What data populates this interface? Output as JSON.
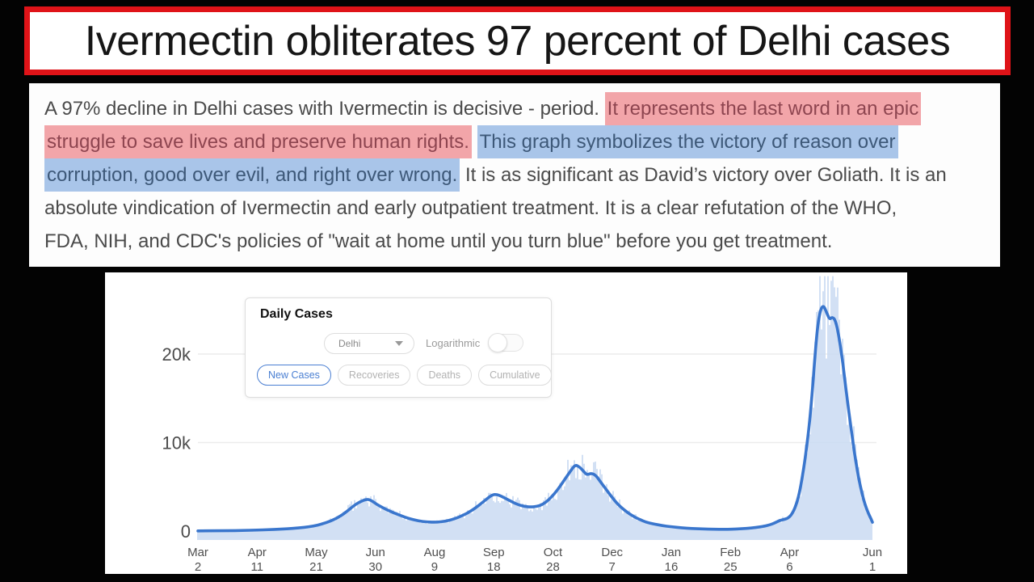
{
  "headline": {
    "text": "Ivermectin obliterates 97 percent of Delhi cases",
    "border_color": "#df1318"
  },
  "paragraph": {
    "text_color": "#4a4a4a",
    "highlight_pink_bg": "#f2a5a9",
    "highlight_pink_text": "#8e4550",
    "highlight_blue_bg": "#a9c5e9",
    "highlight_blue_text": "#3d5878",
    "lines": [
      [
        {
          "t": "A 97% decline in Delhi cases with Ivermectin is decisive - period. ",
          "h": "none"
        },
        {
          "t": "It represents the last word in an epic",
          "h": "pink"
        }
      ],
      [
        {
          "t": "struggle to save lives and preserve human rights.",
          "h": "pink"
        },
        {
          "t": " ",
          "h": "none"
        },
        {
          "t": "This graph symbolizes the victory of reason over",
          "h": "blue"
        }
      ],
      [
        {
          "t": "corruption, good over evil, and right over wrong.",
          "h": "blue"
        },
        {
          "t": " It is as significant as David’s victory over Goliath. It is an",
          "h": "none"
        }
      ],
      [
        {
          "t": "absolute vindication of Ivermectin and early outpatient treatment. It is a clear refutation of the WHO,",
          "h": "none"
        }
      ],
      [
        {
          "t": "FDA, NIH, and CDC's policies of \"wait at home until you turn blue\" before you get treatment.",
          "h": "none"
        }
      ]
    ]
  },
  "chart": {
    "panel": {
      "title": "Daily Cases",
      "region_selector": {
        "value": "Delhi"
      },
      "log_label": "Logarithmic",
      "log_enabled": false,
      "tabs": [
        {
          "label": "New Cases",
          "active": true
        },
        {
          "label": "Recoveries",
          "active": false
        },
        {
          "label": "Deaths",
          "active": false
        },
        {
          "label": "Cumulative",
          "active": false
        }
      ]
    },
    "colors": {
      "line": "#3a76cd",
      "fill": "#c7d9f2",
      "grid": "#ececec",
      "axis_text": "#4c4c4c",
      "accent": "#4a7fd2"
    }
  },
  "chart_data": {
    "type": "area",
    "title": "Daily Cases",
    "region": "Delhi",
    "series_name": "New Cases",
    "x_range": "Mar 2, 2020 to Jun 1, 2021",
    "x_unit": "days since Mar 2, 2020",
    "ylim": [
      0,
      28800
    ],
    "grid": "horizontal",
    "y_ticks": [
      {
        "label": "0",
        "v": 0
      },
      {
        "label": "10k",
        "v": 10000
      },
      {
        "label": "20k",
        "v": 20000
      }
    ],
    "x_ticks": [
      {
        "month": "Mar",
        "day_label": "2",
        "day": 0
      },
      {
        "month": "Apr",
        "day_label": "11",
        "day": 40
      },
      {
        "month": "May",
        "day_label": "21",
        "day": 80
      },
      {
        "month": "Jun",
        "day_label": "30",
        "day": 120
      },
      {
        "month": "Aug",
        "day_label": "9",
        "day": 160
      },
      {
        "month": "Sep",
        "day_label": "18",
        "day": 200
      },
      {
        "month": "Oct",
        "day_label": "28",
        "day": 240
      },
      {
        "month": "Dec",
        "day_label": "7",
        "day": 280
      },
      {
        "month": "Jan",
        "day_label": "16",
        "day": 320
      },
      {
        "month": "Feb",
        "day_label": "25",
        "day": 360
      },
      {
        "month": "Apr",
        "day_label": "6",
        "day": 400
      },
      {
        "month": "Jun",
        "day_label": "1",
        "day": 456
      }
    ],
    "points": [
      [
        0,
        20
      ],
      [
        10,
        30
      ],
      [
        20,
        45
      ],
      [
        30,
        70
      ],
      [
        40,
        110
      ],
      [
        48,
        160
      ],
      [
        56,
        220
      ],
      [
        64,
        300
      ],
      [
        72,
        420
      ],
      [
        78,
        560
      ],
      [
        84,
        800
      ],
      [
        90,
        1150
      ],
      [
        96,
        1650
      ],
      [
        101,
        2250
      ],
      [
        106,
        2950
      ],
      [
        110,
        3350
      ],
      [
        114,
        3600
      ],
      [
        117,
        3500
      ],
      [
        121,
        3000
      ],
      [
        126,
        2550
      ],
      [
        131,
        2150
      ],
      [
        137,
        1750
      ],
      [
        143,
        1400
      ],
      [
        149,
        1150
      ],
      [
        155,
        1030
      ],
      [
        161,
        1000
      ],
      [
        167,
        1100
      ],
      [
        173,
        1350
      ],
      [
        179,
        1750
      ],
      [
        185,
        2300
      ],
      [
        190,
        2900
      ],
      [
        195,
        3600
      ],
      [
        199,
        4100
      ],
      [
        202,
        4150
      ],
      [
        205,
        3950
      ],
      [
        209,
        3600
      ],
      [
        213,
        3250
      ],
      [
        217,
        2950
      ],
      [
        221,
        2780
      ],
      [
        225,
        2720
      ],
      [
        229,
        2780
      ],
      [
        233,
        3000
      ],
      [
        237,
        3500
      ],
      [
        241,
        4200
      ],
      [
        245,
        5100
      ],
      [
        249,
        6100
      ],
      [
        252,
        6800
      ],
      [
        255,
        7500
      ],
      [
        258,
        7250
      ],
      [
        261,
        6700
      ],
      [
        263,
        6350
      ],
      [
        266,
        6550
      ],
      [
        269,
        6300
      ],
      [
        272,
        5600
      ],
      [
        276,
        4700
      ],
      [
        280,
        3800
      ],
      [
        284,
        3000
      ],
      [
        288,
        2400
      ],
      [
        293,
        1800
      ],
      [
        298,
        1350
      ],
      [
        303,
        1000
      ],
      [
        308,
        800
      ],
      [
        314,
        620
      ],
      [
        320,
        480
      ],
      [
        327,
        370
      ],
      [
        334,
        290
      ],
      [
        341,
        235
      ],
      [
        349,
        200
      ],
      [
        357,
        195
      ],
      [
        364,
        225
      ],
      [
        371,
        300
      ],
      [
        377,
        400
      ],
      [
        383,
        550
      ],
      [
        387,
        720
      ],
      [
        390,
        920
      ],
      [
        393,
        1180
      ],
      [
        396,
        1300
      ],
      [
        399,
        1450
      ],
      [
        402,
        2000
      ],
      [
        405,
        3200
      ],
      [
        407,
        4600
      ],
      [
        409,
        6500
      ],
      [
        411,
        8800
      ],
      [
        413,
        11500
      ],
      [
        415,
        15000
      ],
      [
        417,
        19500
      ],
      [
        419,
        23300
      ],
      [
        421,
        25100
      ],
      [
        423,
        25500
      ],
      [
        425,
        24700
      ],
      [
        427,
        23900
      ],
      [
        429,
        24200
      ],
      [
        431,
        23800
      ],
      [
        433,
        22300
      ],
      [
        435,
        20200
      ],
      [
        437,
        17600
      ],
      [
        439,
        14800
      ],
      [
        441,
        12300
      ],
      [
        443,
        9800
      ],
      [
        445,
        7600
      ],
      [
        447,
        5700
      ],
      [
        449,
        4200
      ],
      [
        451,
        3000
      ],
      [
        453,
        2100
      ],
      [
        455,
        1400
      ],
      [
        456,
        1000
      ]
    ]
  }
}
